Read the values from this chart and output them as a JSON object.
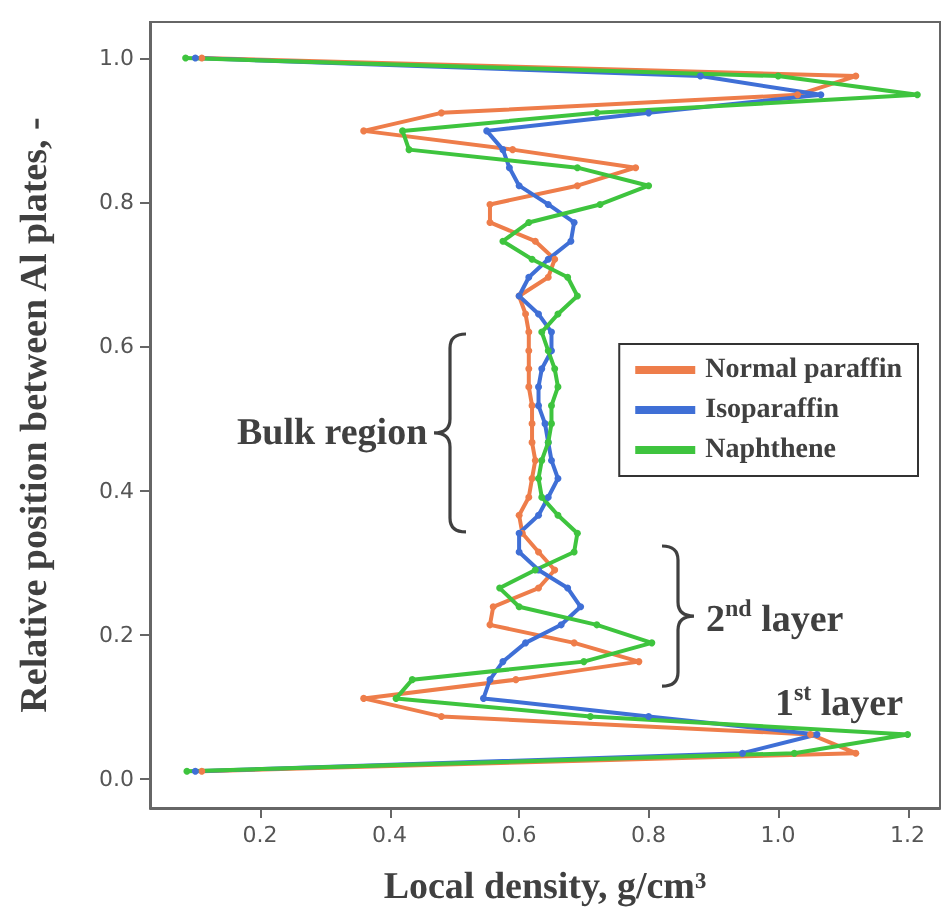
{
  "chart_data": {
    "type": "line",
    "xlabel": "Local density, g/cm³",
    "ylabel": "Relative position between Al plates, -",
    "xlim": [
      0.03,
      1.25
    ],
    "ylim": [
      -0.04,
      1.05
    ],
    "xticks": [
      0.2,
      0.4,
      0.6,
      0.8,
      {
        "value": 1,
        "label": "1.0"
      },
      1.2
    ],
    "yticks": [
      {
        "value": 0,
        "label": "0.0"
      },
      0.2,
      0.4,
      0.6,
      0.8,
      {
        "value": 1,
        "label": "1.0"
      }
    ],
    "grid": false,
    "legend": "right",
    "marker": "circle",
    "line_style": "solid",
    "annotations": [
      "Bulk region",
      "2$^{nd}$ layer",
      "1$^{st}$ layer"
    ],
    "series": [
      {
        "name": "Normal paraffin",
        "color": "#ee7d4a",
        "x": [
          0.11,
          1.12,
          1.05,
          0.48,
          0.36,
          0.595,
          0.785,
          0.685,
          0.555,
          0.56,
          0.63,
          0.655,
          0.63,
          0.605,
          0.6,
          0.615,
          0.62,
          0.625,
          0.62,
          0.62,
          0.62,
          0.615,
          0.615,
          0.615,
          0.615,
          0.61,
          0.6,
          0.645,
          0.655,
          0.625,
          0.555,
          0.555,
          0.69,
          0.78,
          0.59,
          0.36,
          0.48,
          1.03,
          1.12,
          0.11
        ],
        "values": [
          0.011,
          0.036,
          0.062,
          0.087,
          0.112,
          0.138,
          0.163,
          0.189,
          0.214,
          0.239,
          0.265,
          0.29,
          0.315,
          0.341,
          0.366,
          0.391,
          0.417,
          0.442,
          0.467,
          0.493,
          0.518,
          0.544,
          0.569,
          0.594,
          0.62,
          0.645,
          0.67,
          0.696,
          0.721,
          0.746,
          0.772,
          0.797,
          0.823,
          0.848,
          0.873,
          0.899,
          0.924,
          0.949,
          0.975,
          1.0
        ]
      },
      {
        "name": "Isoparaffin",
        "color": "#3f6fd6",
        "x": [
          0.1,
          0.945,
          1.06,
          0.8,
          0.545,
          0.555,
          0.575,
          0.61,
          0.665,
          0.695,
          0.675,
          0.63,
          0.6,
          0.6,
          0.63,
          0.645,
          0.66,
          0.65,
          0.645,
          0.64,
          0.63,
          0.63,
          0.635,
          0.65,
          0.65,
          0.63,
          0.6,
          0.615,
          0.645,
          0.68,
          0.685,
          0.645,
          0.6,
          0.585,
          0.575,
          0.55,
          0.8,
          1.066,
          0.88,
          0.1
        ],
        "values": [
          0.011,
          0.036,
          0.062,
          0.087,
          0.112,
          0.138,
          0.163,
          0.189,
          0.214,
          0.239,
          0.265,
          0.29,
          0.315,
          0.341,
          0.366,
          0.391,
          0.417,
          0.442,
          0.467,
          0.493,
          0.518,
          0.544,
          0.569,
          0.594,
          0.62,
          0.645,
          0.67,
          0.696,
          0.721,
          0.746,
          0.772,
          0.797,
          0.823,
          0.848,
          0.873,
          0.899,
          0.924,
          0.949,
          0.975,
          1.0
        ]
      },
      {
        "name": "Naphthene",
        "color": "#3ec43e",
        "x": [
          0.087,
          1.025,
          1.2,
          0.71,
          0.41,
          0.435,
          0.7,
          0.805,
          0.72,
          0.6,
          0.57,
          0.625,
          0.685,
          0.69,
          0.66,
          0.635,
          0.63,
          0.635,
          0.645,
          0.65,
          0.65,
          0.66,
          0.655,
          0.645,
          0.635,
          0.66,
          0.69,
          0.675,
          0.62,
          0.575,
          0.615,
          0.725,
          0.8,
          0.69,
          0.43,
          0.42,
          0.72,
          1.215,
          1.0,
          0.085
        ],
        "values": [
          0.011,
          0.036,
          0.062,
          0.087,
          0.112,
          0.138,
          0.163,
          0.189,
          0.214,
          0.239,
          0.265,
          0.29,
          0.315,
          0.341,
          0.366,
          0.391,
          0.417,
          0.442,
          0.467,
          0.493,
          0.518,
          0.544,
          0.569,
          0.594,
          0.62,
          0.645,
          0.67,
          0.696,
          0.721,
          0.746,
          0.772,
          0.797,
          0.823,
          0.848,
          0.873,
          0.899,
          0.924,
          0.949,
          0.975,
          1.0
        ]
      }
    ]
  }
}
